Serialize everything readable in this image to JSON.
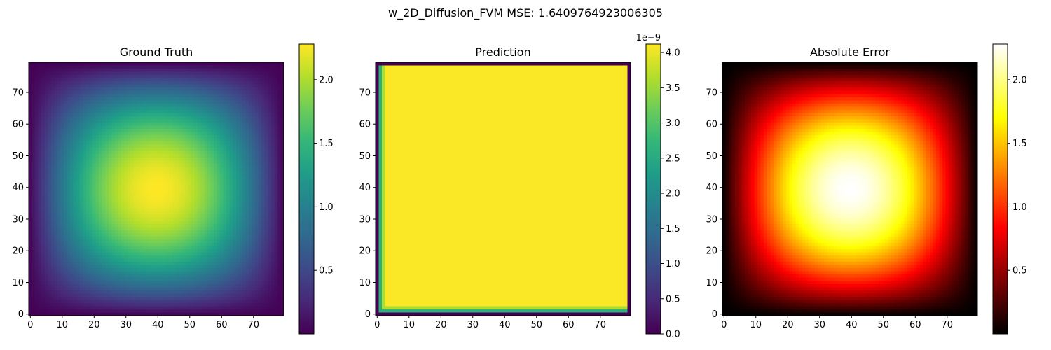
{
  "figure": {
    "suptitle": "w_2D_Diffusion_FVM MSE: 1.6409764923006305"
  },
  "chart_data": [
    {
      "type": "heatmap",
      "title": "Ground Truth",
      "colormap": "viridis",
      "grid_size": [
        80,
        80
      ],
      "field": "smooth bump peaking at center (~40,40), zero on the boundary",
      "value_range": [
        0.0,
        2.28
      ],
      "x_ticks": [
        "0",
        "10",
        "20",
        "30",
        "40",
        "50",
        "60",
        "70"
      ],
      "y_ticks": [
        "0",
        "10",
        "20",
        "30",
        "40",
        "50",
        "60",
        "70"
      ],
      "colorbar": {
        "ticks": [
          "0.5",
          "1.0",
          "1.5",
          "2.0"
        ],
        "tick_values": [
          0.5,
          1.0,
          1.5,
          2.0
        ],
        "range": [
          0.0,
          2.28
        ],
        "offset_text": ""
      }
    },
    {
      "type": "heatmap",
      "title": "Prediction",
      "colormap": "viridis",
      "grid_size": [
        80,
        80
      ],
      "field": "~4.1e-9 uniformly in interior, 0 on boundary rows/cols",
      "value_range": [
        0.0,
        4.12e-09
      ],
      "x_ticks": [
        "0",
        "10",
        "20",
        "30",
        "40",
        "50",
        "60",
        "70"
      ],
      "y_ticks": [
        "0",
        "10",
        "20",
        "30",
        "40",
        "50",
        "60",
        "70"
      ],
      "colorbar": {
        "ticks": [
          "0.0",
          "0.5",
          "1.0",
          "1.5",
          "2.0",
          "2.5",
          "3.0",
          "3.5",
          "4.0"
        ],
        "tick_values": [
          0,
          0.5,
          1.0,
          1.5,
          2.0,
          2.5,
          3.0,
          3.5,
          4.0
        ],
        "range": [
          0.0,
          4.12
        ],
        "offset_text": "1e−9"
      }
    },
    {
      "type": "heatmap",
      "title": "Absolute Error",
      "colormap": "hot",
      "grid_size": [
        80,
        80
      ],
      "field": "|Ground Truth − Prediction|",
      "value_range": [
        0.0,
        2.28
      ],
      "x_ticks": [
        "0",
        "10",
        "20",
        "30",
        "40",
        "50",
        "60",
        "70"
      ],
      "y_ticks": [
        "0",
        "10",
        "20",
        "30",
        "40",
        "50",
        "60",
        "70"
      ],
      "colorbar": {
        "ticks": [
          "0.5",
          "1.0",
          "1.5",
          "2.0"
        ],
        "tick_values": [
          0.5,
          1.0,
          1.5,
          2.0
        ],
        "range": [
          0.0,
          2.28
        ],
        "offset_text": ""
      }
    }
  ]
}
